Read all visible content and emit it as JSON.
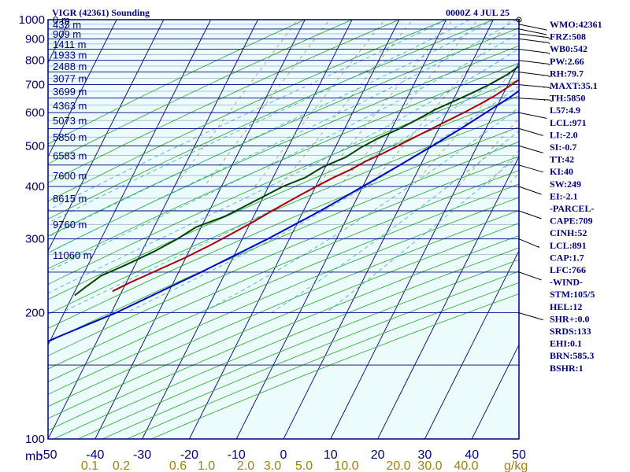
{
  "header": {
    "title": "VIGR (42361) Sounding",
    "valid_time": "0000Z  4 JUL 25"
  },
  "indices": [
    "WMO:42361",
    "FRZ:508",
    "WB0:542",
    "PW:2.66",
    "RH:79.7",
    "MAXT:35.1",
    "TH:5850",
    "L57:4.9",
    "LCL:971",
    "LI:-2.0",
    "SI:-0.7",
    "TT:42",
    "KI:40",
    "SW:249",
    "EI:-2.1",
    "-PARCEL-",
    "CAPE:709",
    "CINH:52",
    "LCL:891",
    "CAP:1.7",
    "LFC:766",
    "-WIND-",
    "STM:105/5",
    "HEL:12",
    "SHR+:0.0",
    "SRDS:133",
    "EHI:0.1",
    "BRN:585.3",
    "BSHR:1"
  ],
  "colors": {
    "frame": "#000080",
    "panel": "#ecfbfb",
    "isotherm": "#000080",
    "dry_adiabat": "#22aa22",
    "moist_adiabat": "#33aacc",
    "mixing_ratio": "#998844",
    "parcel": "#0000cc",
    "temperature": "#aa0000",
    "dewpoint": "#004400"
  },
  "chart_data": {
    "type": "skew-t log-p",
    "pressure_unit": "mb",
    "mixing_ratio_unit": "g/kg",
    "pressure_axis": {
      "range": [
        1000,
        100
      ],
      "scale": "log",
      "tick_labels": [
        "100",
        "200",
        "300",
        "400",
        "500",
        "600",
        "700",
        "800",
        "900",
        "1000"
      ]
    },
    "temperature_axis": {
      "range": [
        -50,
        50
      ],
      "tick_labels": [
        "-50",
        "-40",
        "-30",
        "-20",
        "-10",
        "0",
        "10",
        "20",
        "30",
        "40",
        "50"
      ]
    },
    "mixing_ratio_labels": [
      "0.1",
      "0.2",
      "0.6",
      "1.0",
      "2.0",
      "3.0",
      "5.0",
      "10.0",
      "20.0",
      "30.0",
      "40.0"
    ],
    "height_labels": [
      {
        "p": 1000,
        "label": "0 m"
      },
      {
        "p": 975,
        "label": "435 m"
      },
      {
        "p": 925,
        "label": "909 m"
      },
      {
        "p": 875,
        "label": "1411 m"
      },
      {
        "p": 825,
        "label": "1933 m"
      },
      {
        "p": 775,
        "label": "2488 m"
      },
      {
        "p": 725,
        "label": "3077 m"
      },
      {
        "p": 675,
        "label": "3699 m"
      },
      {
        "p": 625,
        "label": "4363 m"
      },
      {
        "p": 575,
        "label": "5073 m"
      },
      {
        "p": 525,
        "label": "5850 m"
      },
      {
        "p": 475,
        "label": "6583 m"
      },
      {
        "p": 425,
        "label": "7600 m"
      },
      {
        "p": 375,
        "label": "8615 m"
      },
      {
        "p": 325,
        "label": "9760 m"
      },
      {
        "p": 275,
        "label": "11060 m"
      }
    ],
    "series": [
      {
        "key": "temperature",
        "points": [
          [
            998,
            24.6
          ],
          [
            980,
            24.5
          ],
          [
            960,
            24.2
          ],
          [
            930,
            23.2
          ],
          [
            900,
            21.2
          ],
          [
            870,
            19.6
          ],
          [
            850,
            18.0
          ],
          [
            820,
            16.8
          ],
          [
            790,
            15.5
          ],
          [
            770,
            14.8
          ],
          [
            740,
            13.0
          ],
          [
            700,
            10.8
          ],
          [
            660,
            8.5
          ],
          [
            630,
            6.2
          ],
          [
            600,
            3.6
          ],
          [
            570,
            0.6
          ],
          [
            540,
            -2.5
          ],
          [
            510,
            -5.8
          ],
          [
            480,
            -9.2
          ],
          [
            460,
            -12.0
          ],
          [
            440,
            -14.2
          ],
          [
            420,
            -17.2
          ],
          [
            400,
            -19.9
          ],
          [
            380,
            -22.6
          ],
          [
            350,
            -26.7
          ],
          [
            330,
            -29.4
          ],
          [
            310,
            -32.6
          ],
          [
            290,
            -36.1
          ],
          [
            270,
            -40.3
          ],
          [
            250,
            -45.4
          ],
          [
            235,
            -49.5
          ],
          [
            225,
            -52.0
          ]
        ]
      },
      {
        "key": "dewpoint",
        "points": [
          [
            998,
            24.1
          ],
          [
            985,
            21.4
          ],
          [
            960,
            20.6
          ],
          [
            925,
            19.5
          ],
          [
            900,
            18.4
          ],
          [
            870,
            17.1
          ],
          [
            850,
            15.8
          ],
          [
            820,
            13.7
          ],
          [
            790,
            11.6
          ],
          [
            770,
            10.2
          ],
          [
            740,
            8.8
          ],
          [
            700,
            6.0
          ],
          [
            670,
            3.4
          ],
          [
            640,
            0.4
          ],
          [
            610,
            -2.8
          ],
          [
            580,
            -5.4
          ],
          [
            550,
            -8.3
          ],
          [
            520,
            -12.0
          ],
          [
            495,
            -14.6
          ],
          [
            470,
            -16.7
          ],
          [
            445,
            -20.6
          ],
          [
            420,
            -23.2
          ],
          [
            400,
            -27.0
          ],
          [
            380,
            -29.8
          ],
          [
            360,
            -32.8
          ],
          [
            340,
            -36.0
          ],
          [
            320,
            -41.1
          ],
          [
            300,
            -43.8
          ],
          [
            280,
            -47.4
          ],
          [
            260,
            -52.0
          ],
          [
            245,
            -56.1
          ],
          [
            230,
            -58.2
          ],
          [
            220,
            -59.6
          ]
        ]
      },
      {
        "key": "parcel",
        "points": [
          [
            970,
            28.0
          ],
          [
            950,
            26.0
          ],
          [
            920,
            23.7
          ],
          [
            891,
            21.4
          ],
          [
            850,
            20.2
          ],
          [
            800,
            18.5
          ],
          [
            766,
            17.2
          ],
          [
            700,
            14.2
          ],
          [
            650,
            11.6
          ],
          [
            600,
            8.3
          ],
          [
            550,
            4.7
          ],
          [
            500,
            0.5
          ],
          [
            450,
            -4.4
          ],
          [
            400,
            -10.0
          ],
          [
            350,
            -16.4
          ],
          [
            300,
            -24.6
          ],
          [
            250,
            -35.2
          ],
          [
            200,
            -49.0
          ],
          [
            175,
            -58.8
          ],
          [
            155,
            -67.2
          ],
          [
            140,
            -75.0
          ]
        ]
      }
    ],
    "wind_barbs": [
      {
        "p": 1000,
        "dir": 0,
        "speed_kt": 0
      },
      {
        "p": 975,
        "dir": 240,
        "speed_kt": 15
      },
      {
        "p": 950,
        "dir": 240,
        "speed_kt": 15
      },
      {
        "p": 925,
        "dir": 250,
        "speed_kt": 15
      },
      {
        "p": 900,
        "dir": 250,
        "speed_kt": 15
      },
      {
        "p": 850,
        "dir": 250,
        "speed_kt": 15
      },
      {
        "p": 800,
        "dir": 250,
        "speed_kt": 15
      },
      {
        "p": 750,
        "dir": 250,
        "speed_kt": 15
      },
      {
        "p": 700,
        "dir": 255,
        "speed_kt": 15
      },
      {
        "p": 650,
        "dir": 260,
        "speed_kt": 15
      },
      {
        "p": 600,
        "dir": 240,
        "speed_kt": 10
      },
      {
        "p": 550,
        "dir": 230,
        "speed_kt": 10
      },
      {
        "p": 500,
        "dir": 230,
        "speed_kt": 10
      },
      {
        "p": 450,
        "dir": 230,
        "speed_kt": 10
      },
      {
        "p": 400,
        "dir": 225,
        "speed_kt": 10
      },
      {
        "p": 350,
        "dir": 225,
        "speed_kt": 10
      },
      {
        "p": 300,
        "dir": 220,
        "speed_kt": 10
      },
      {
        "p": 250,
        "dir": 225,
        "speed_kt": 10
      },
      {
        "p": 200,
        "dir": 230,
        "speed_kt": 10
      }
    ],
    "grid": true
  }
}
